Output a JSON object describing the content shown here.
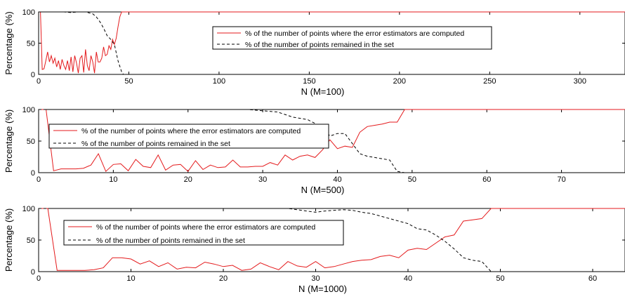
{
  "chart_data": [
    {
      "type": "line",
      "xlabel": "N (M=100)",
      "ylabel": "Percentage (%)",
      "xlim": [
        0,
        325
      ],
      "ylim": [
        0,
        100
      ],
      "xticks": [
        "0",
        "50",
        "100",
        "150",
        "200",
        "250",
        "300"
      ],
      "yticks": [
        "0",
        "50",
        "100"
      ],
      "legend_position": "center",
      "series": [
        {
          "name": "% of the number of points where the error estimators are computed",
          "color": "#e41a1c",
          "style": "solid",
          "x": [
            0,
            1,
            2,
            3,
            4,
            5,
            6,
            7,
            8,
            9,
            10,
            11,
            12,
            13,
            14,
            15,
            16,
            17,
            18,
            19,
            20,
            21,
            22,
            23,
            24,
            25,
            26,
            27,
            28,
            29,
            30,
            31,
            32,
            33,
            34,
            35,
            36,
            37,
            38,
            39,
            40,
            41,
            42,
            43,
            44,
            45,
            46,
            47,
            325
          ],
          "y": [
            100,
            100,
            8,
            9,
            22,
            36,
            20,
            30,
            18,
            26,
            12,
            22,
            8,
            24,
            14,
            8,
            22,
            6,
            28,
            4,
            30,
            18,
            2,
            26,
            30,
            3,
            40,
            14,
            6,
            30,
            20,
            2,
            36,
            20,
            20,
            26,
            44,
            30,
            32,
            46,
            40,
            56,
            48,
            58,
            76,
            92,
            100,
            100,
            100
          ]
        },
        {
          "name": "% of the number of points remained in the set",
          "color": "#000000",
          "style": "dashed",
          "x": [
            0,
            10,
            14,
            18,
            22,
            26,
            30,
            32,
            34,
            36,
            38,
            40,
            42,
            44,
            46,
            47,
            48,
            325
          ],
          "y": [
            100,
            100,
            100,
            99,
            100,
            100,
            97,
            92,
            84,
            74,
            62,
            56,
            48,
            22,
            4,
            0,
            0,
            0
          ]
        }
      ]
    },
    {
      "type": "line",
      "xlabel": "N (M=500)",
      "ylabel": "Percentage (%)",
      "xlim": [
        0,
        78.5
      ],
      "ylim": [
        0,
        100
      ],
      "xticks": [
        "0",
        "10",
        "20",
        "30",
        "40",
        "50",
        "60",
        "70"
      ],
      "yticks": [
        "0",
        "50",
        "100"
      ],
      "legend_position": "center-left",
      "series": [
        {
          "name": "% of the number of points where the error estimators are computed",
          "color": "#e41a1c",
          "style": "solid",
          "x": [
            0,
            1,
            2,
            3,
            4,
            5,
            6,
            7,
            8,
            9,
            10,
            11,
            12,
            13,
            14,
            15,
            16,
            17,
            18,
            19,
            20,
            21,
            22,
            23,
            24,
            25,
            26,
            27,
            28,
            29,
            30,
            31,
            32,
            33,
            34,
            35,
            36,
            37,
            38,
            39,
            40,
            41,
            42,
            43,
            44,
            45,
            46,
            47,
            48,
            49,
            78.5
          ],
          "y": [
            100,
            100,
            3,
            6,
            6,
            6,
            7,
            12,
            30,
            2,
            13,
            14,
            3,
            21,
            10,
            8,
            28,
            4,
            12,
            13,
            2,
            19,
            5,
            12,
            8,
            9,
            20,
            9,
            9,
            10,
            10,
            16,
            12,
            28,
            20,
            26,
            28,
            24,
            36,
            52,
            38,
            42,
            40,
            64,
            73,
            75,
            77,
            80,
            80,
            100,
            100
          ]
        },
        {
          "name": "% of the number of points remained in the set",
          "color": "#000000",
          "style": "dashed",
          "x": [
            0,
            5,
            10,
            15,
            20,
            25,
            28,
            30,
            32,
            34,
            36,
            37,
            38,
            39,
            40,
            41,
            42,
            43,
            44,
            46,
            47,
            48,
            49,
            50,
            78.5
          ],
          "y": [
            100,
            100,
            100,
            100,
            100,
            100,
            100,
            98,
            96,
            88,
            84,
            78,
            72,
            58,
            62,
            62,
            46,
            30,
            26,
            22,
            20,
            2,
            0,
            0,
            0
          ]
        }
      ]
    },
    {
      "type": "line",
      "xlabel": "N (M=1000)",
      "ylabel": "Percentage (%)",
      "xlim": [
        0,
        63.5
      ],
      "ylim": [
        0,
        100
      ],
      "xticks": [
        "0",
        "10",
        "20",
        "30",
        "40",
        "50",
        "60"
      ],
      "yticks": [
        "0",
        "50",
        "100"
      ],
      "legend_position": "center-left",
      "series": [
        {
          "name": "% of the number of points where the error estimators are computed",
          "color": "#e41a1c",
          "style": "solid",
          "x": [
            0,
            1,
            2,
            3,
            4,
            5,
            6,
            7,
            8,
            9,
            10,
            11,
            12,
            13,
            14,
            15,
            16,
            17,
            18,
            19,
            20,
            21,
            22,
            23,
            24,
            25,
            26,
            27,
            28,
            29,
            30,
            31,
            32,
            33,
            34,
            35,
            36,
            37,
            38,
            39,
            40,
            41,
            42,
            43,
            44,
            45,
            46,
            47,
            48,
            49,
            50,
            63.5
          ],
          "y": [
            100,
            100,
            2,
            2,
            2,
            2,
            3,
            6,
            22,
            22,
            20,
            12,
            17,
            8,
            14,
            4,
            7,
            6,
            15,
            12,
            8,
            10,
            2,
            4,
            14,
            8,
            3,
            16,
            9,
            7,
            16,
            6,
            8,
            12,
            16,
            18,
            19,
            24,
            26,
            22,
            34,
            37,
            35,
            45,
            55,
            58,
            80,
            82,
            84,
            100,
            100,
            100
          ]
        },
        {
          "name": "% of the number of points remained in the set",
          "color": "#000000",
          "style": "dashed",
          "x": [
            0,
            10,
            20,
            25,
            27,
            29,
            30,
            31,
            33,
            34,
            35,
            36,
            37,
            38,
            39,
            40,
            41,
            42,
            43,
            44,
            45,
            46,
            47,
            48,
            49,
            50,
            63.5
          ],
          "y": [
            100,
            100,
            100,
            100,
            100,
            96,
            94,
            96,
            98,
            97,
            94,
            92,
            88,
            84,
            80,
            76,
            68,
            66,
            58,
            48,
            36,
            22,
            18,
            16,
            0,
            0,
            0
          ]
        }
      ]
    }
  ]
}
